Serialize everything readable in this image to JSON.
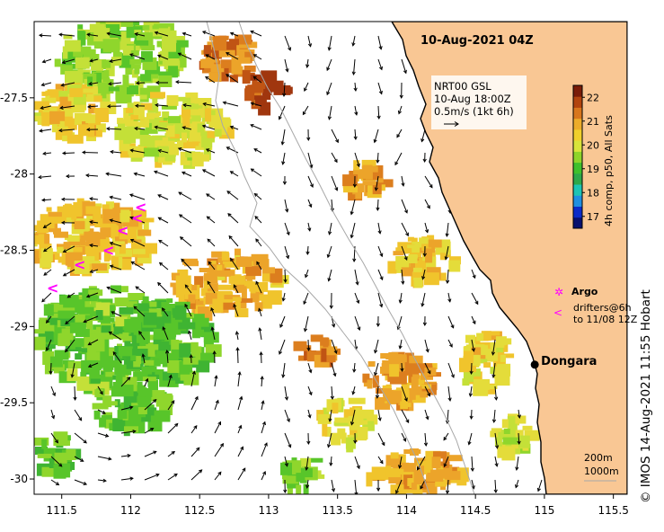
{
  "map_title": "10-Aug-2021 04Z",
  "product": {
    "line1": "NRT00 GSL",
    "line2": "10-Aug 18:00Z",
    "line3": "0.5m/s (1kt 6h)"
  },
  "colorbar": {
    "label": "4h comp, p50, All Sats",
    "ticks": [
      "22",
      "21",
      "20",
      "19",
      "18",
      "17"
    ],
    "min": 16.5,
    "max": 22.5,
    "colors": [
      "#08106e",
      "#0c2bc8",
      "#1f8fe0",
      "#1dc4b4",
      "#2ea84a",
      "#3fc02c",
      "#8ed42a",
      "#d8e43a",
      "#f0d02c",
      "#ecac2a",
      "#d8761c",
      "#b2440e",
      "#7a1c08"
    ]
  },
  "legend": {
    "argo_label": "Argo",
    "argo_symbol": "✲",
    "drifter_symbol": "<",
    "drifter_line1": "drifters@6h",
    "drifter_line2": "to 11/08 12Z"
  },
  "place": {
    "name": "Dongara",
    "lon": 114.93,
    "lat": -29.25
  },
  "isobaths": {
    "label1": "200m",
    "label2": "1000m"
  },
  "axes": {
    "lon_ticks": [
      "111.5",
      "112",
      "112.5",
      "113",
      "113.5",
      "114",
      "114.5",
      "115",
      "115.5"
    ],
    "lat_ticks": [
      "-27.5",
      "-28",
      "-28.5",
      "-29",
      "-29.5",
      "-30"
    ],
    "lon_min": 111.3,
    "lon_max": 115.6,
    "lat_min": -30.1,
    "lat_max": -27.0
  },
  "credit": "©  IMOS 14-Aug-2021 11:55 Hobart",
  "colors": {
    "land": "#f9c794",
    "coast": "#000000",
    "isobath": "#a8a8a8",
    "drifter": "#ff00ff",
    "frame": "#000000"
  }
}
